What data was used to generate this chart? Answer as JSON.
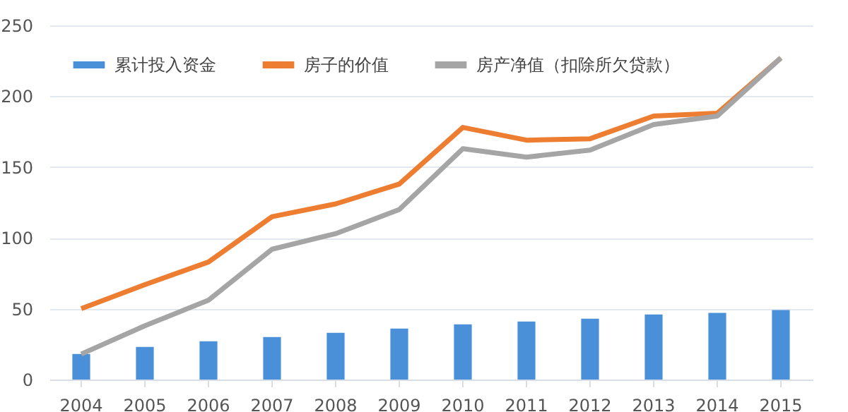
{
  "chart_data": {
    "type": "bar",
    "categories": [
      "2004",
      "2005",
      "2006",
      "2007",
      "2008",
      "2009",
      "2010",
      "2011",
      "2012",
      "2013",
      "2014",
      "2015"
    ],
    "series": [
      {
        "name": "累计投入资金",
        "color": "#4a90d9",
        "values": [
          18,
          23,
          27,
          30,
          33,
          36,
          39,
          41,
          43,
          46,
          47,
          49
        ]
      },
      {
        "name": "房子的价值",
        "type": "line",
        "color": "#ed7d31",
        "values": [
          50,
          67,
          83,
          115,
          124,
          138,
          178,
          169,
          170,
          186,
          188,
          227
        ]
      },
      {
        "name": "房产净值（扣除所欠贷款）",
        "type": "line",
        "color": "#a5a5a5",
        "values": [
          18,
          38,
          56,
          92,
          103,
          120,
          163,
          157,
          162,
          180,
          186,
          227
        ]
      }
    ],
    "ylim": [
      0,
      250
    ],
    "yticks": [
      0,
      50,
      100,
      150,
      200,
      250
    ],
    "grid": "y",
    "legend": "top left",
    "marker": "none",
    "line_style": "solid"
  }
}
